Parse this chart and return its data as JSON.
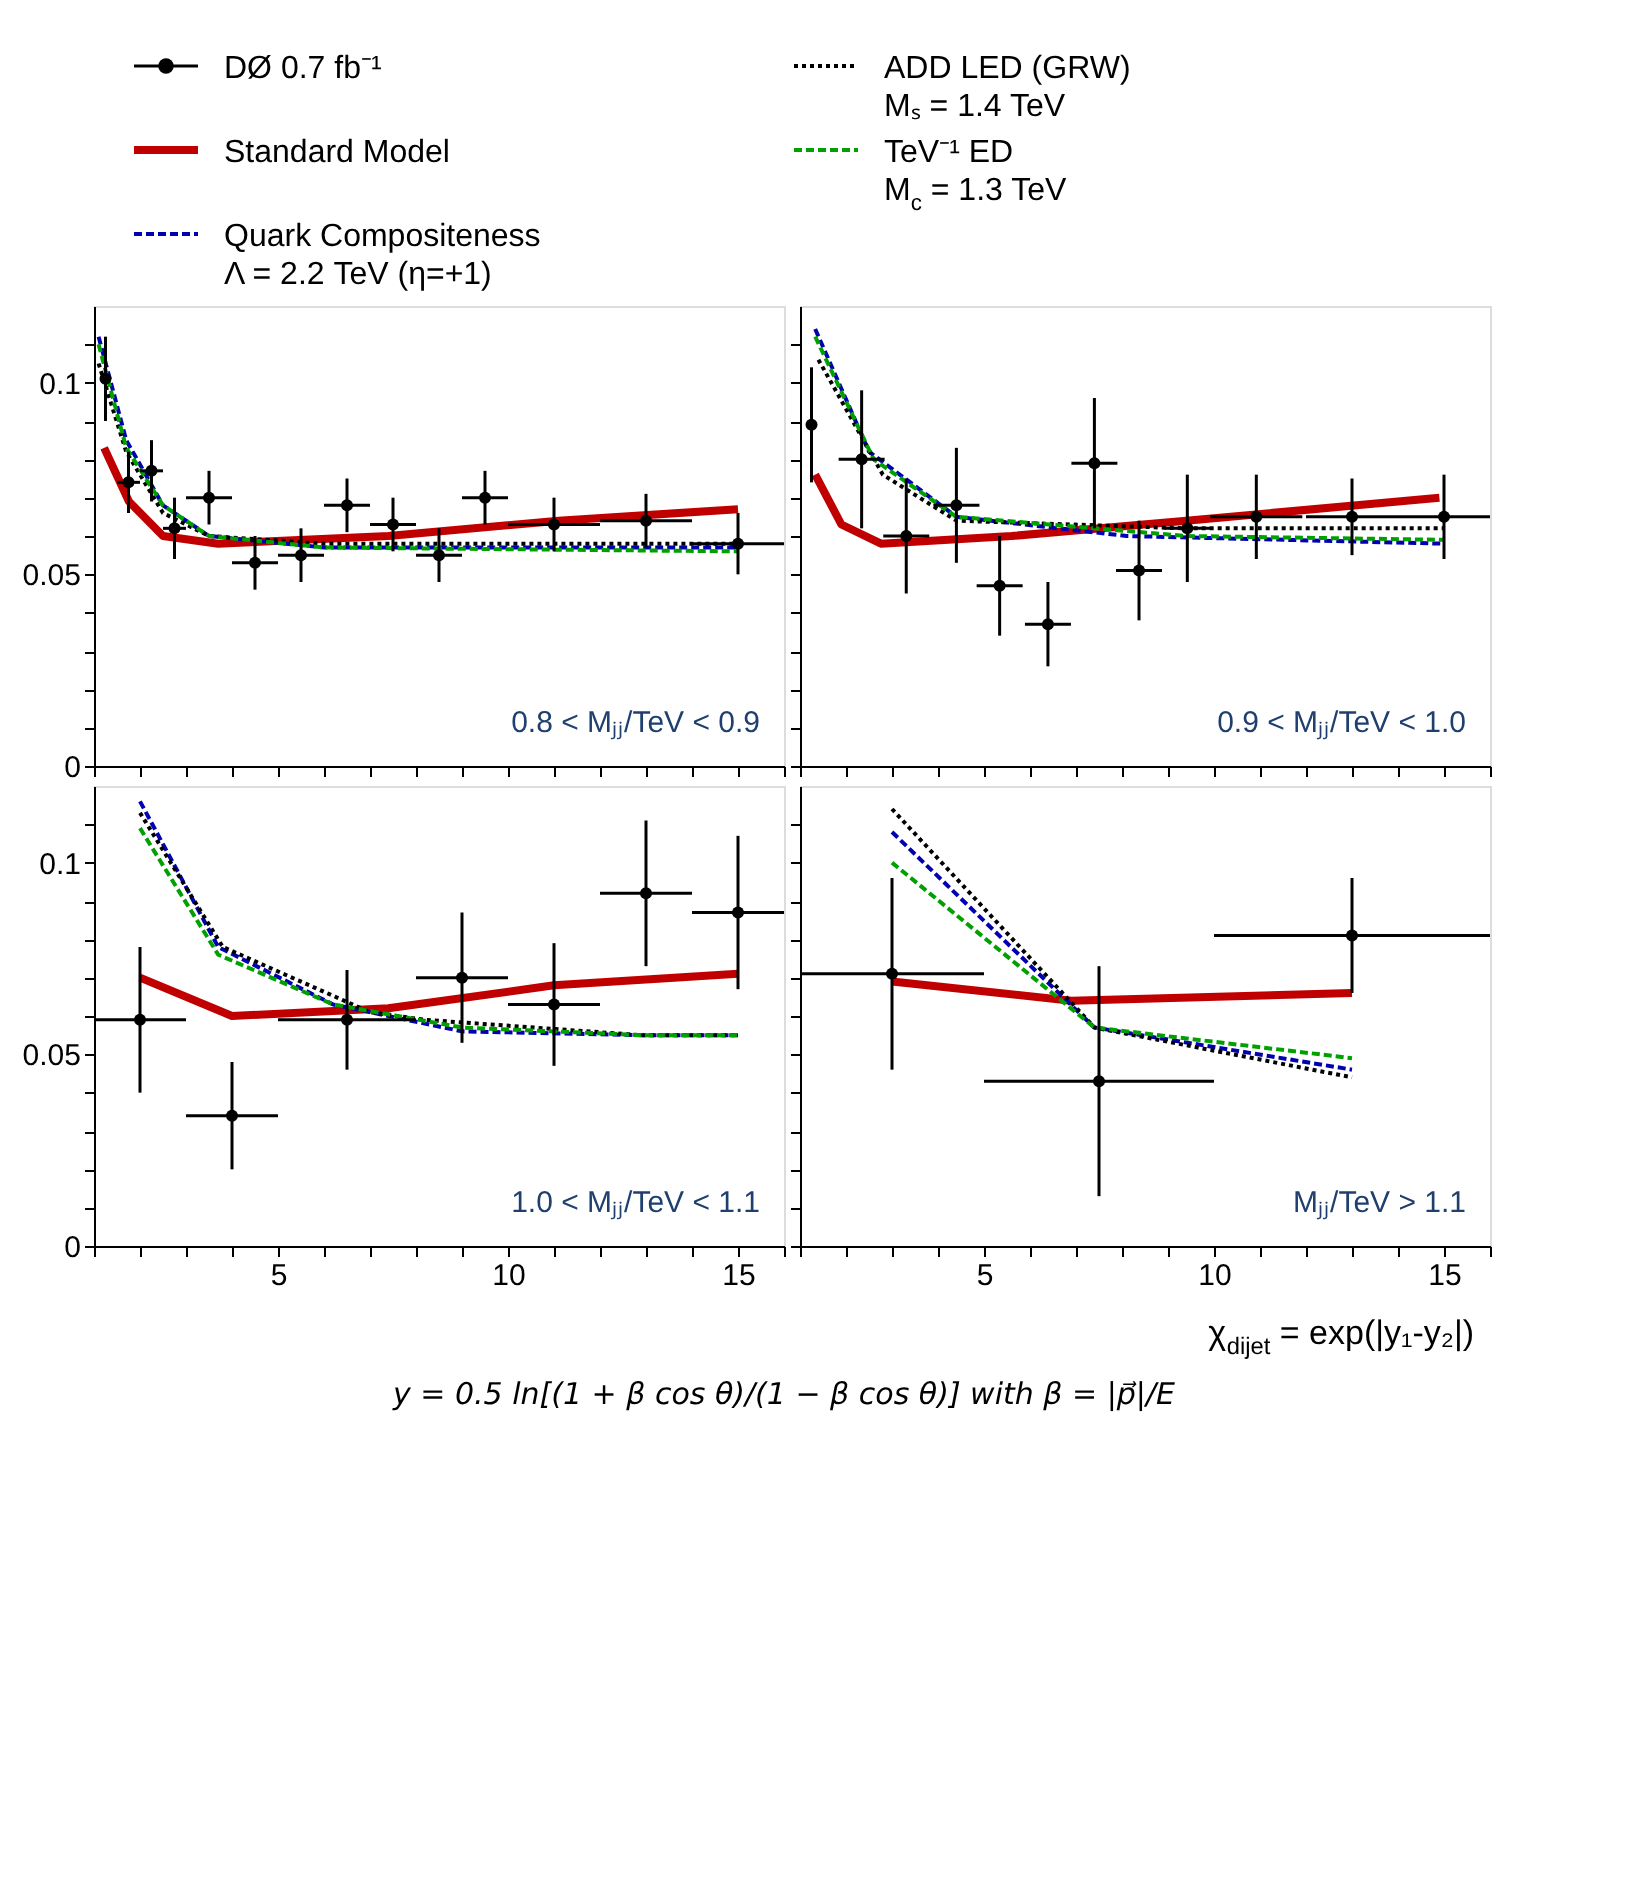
{
  "chart_data": [
    {
      "type": "line",
      "legend": "top",
      "tick_labels": "y",
      "xlim": [
        1,
        16
      ],
      "ylim": [
        0,
        0.12
      ],
      "xticks": [
        {
          "value": 1,
          "label": null
        },
        {
          "value": 2,
          "label": null
        },
        {
          "value": 3,
          "label": null
        },
        {
          "value": 4,
          "label": null
        },
        5,
        {
          "value": 6,
          "label": null
        },
        {
          "value": 7,
          "label": null
        },
        {
          "value": 8,
          "label": null
        },
        {
          "value": 9,
          "label": null
        },
        10,
        {
          "value": 11,
          "label": null
        },
        {
          "value": 12,
          "label": null
        },
        {
          "value": 13,
          "label": null
        },
        {
          "value": 14,
          "label": null
        },
        15,
        {
          "value": 16,
          "label": null
        }
      ],
      "yticks": [
        0,
        {
          "value": 0.01,
          "label": null
        },
        {
          "value": 0.02,
          "label": null
        },
        {
          "value": 0.03,
          "label": null
        },
        {
          "value": 0.04,
          "label": null
        },
        0.05,
        {
          "value": 0.06,
          "label": null
        },
        {
          "value": 0.07,
          "label": null
        },
        {
          "value": 0.08,
          "label": null
        },
        {
          "value": 0.09,
          "label": null
        },
        0.1,
        {
          "value": 0.11,
          "label": null
        }
      ],
      "annotations": [
        "0.8 < Mⱼⱼ/TeV < 0.9"
      ],
      "series": [
        {
          "name": "DØ 0.7 fb⁻¹",
          "type": "scatter",
          "marker": "circle",
          "color": "#000000",
          "x": [
            1.25,
            1.75,
            2.25,
            2.75,
            3.5,
            4.5,
            5.5,
            6.5,
            7.5,
            8.5,
            9.5,
            11,
            13,
            15
          ],
          "values": [
            0.101,
            0.074,
            0.077,
            0.062,
            0.07,
            0.053,
            0.055,
            0.068,
            0.063,
            0.055,
            0.07,
            0.063,
            0.064,
            0.058
          ],
          "errors": [
            0.011,
            0.008,
            0.008,
            0.008,
            0.007,
            0.007,
            0.007,
            0.007,
            0.007,
            0.007,
            0.007,
            0.007,
            0.007,
            0.008
          ],
          "xerrors": [
            null,
            0.25,
            0.25,
            0.25,
            0.5,
            0.5,
            0.5,
            0.5,
            0.5,
            0.5,
            0.5,
            1,
            1,
            1
          ]
        },
        {
          "name": "Standard Model",
          "line_style": "solid",
          "color": "#c00000",
          "x": [
            1.22,
            1.76,
            2.5,
            3.7,
            7.4,
            11.1,
            15
          ],
          "values": [
            0.083,
            0.069,
            0.06,
            0.058,
            0.06,
            0.064,
            0.067
          ]
        },
        {
          "name": "Quark Compositeness\nΛ = 2.2 TeV   (η=+1)",
          "line_style": "dashed",
          "color": "#0000b0",
          "x": [
            1.1,
            1.7,
            2.5,
            3.5,
            6,
            10,
            15
          ],
          "values": [
            0.112,
            0.085,
            0.068,
            0.06,
            0.057,
            0.057,
            0.057
          ]
        },
        {
          "name": "ADD LED  (GRW)\nMₛ = 1.4 TeV",
          "line_style": "dotted",
          "color": "#000000",
          "x": [
            1.1,
            1.7,
            2.5,
            3.5,
            6,
            15
          ],
          "values": [
            0.105,
            0.082,
            0.066,
            0.06,
            0.058,
            0.058
          ]
        },
        {
          "name": "TeV⁻¹ ED\nM$_{c}$ = 1.3 TeV",
          "line_style": "dashed",
          "color": "#00a000",
          "x": [
            1.1,
            1.7,
            2.5,
            3.5,
            6,
            15
          ],
          "values": [
            0.11,
            0.083,
            0.068,
            0.06,
            0.057,
            0.056
          ]
        }
      ]
    },
    {
      "type": "line",
      "tick_labels": false,
      "xlim": [
        1,
        16
      ],
      "ylim": [
        0,
        0.12
      ],
      "xticks": [
        {
          "value": 1,
          "label": null
        },
        {
          "value": 2,
          "label": null
        },
        {
          "value": 3,
          "label": null
        },
        {
          "value": 4,
          "label": null
        },
        5,
        {
          "value": 6,
          "label": null
        },
        {
          "value": 7,
          "label": null
        },
        {
          "value": 8,
          "label": null
        },
        {
          "value": 9,
          "label": null
        },
        10,
        {
          "value": 11,
          "label": null
        },
        {
          "value": 12,
          "label": null
        },
        {
          "value": 13,
          "label": null
        },
        {
          "value": 14,
          "label": null
        },
        15,
        {
          "value": 16,
          "label": null
        }
      ],
      "yticks": [
        0,
        {
          "value": 0.01,
          "label": null
        },
        {
          "value": 0.02,
          "label": null
        },
        {
          "value": 0.03,
          "label": null
        },
        {
          "value": 0.04,
          "label": null
        },
        0.05,
        {
          "value": 0.06,
          "label": null
        },
        {
          "value": 0.07,
          "label": null
        },
        {
          "value": 0.08,
          "label": null
        },
        {
          "value": 0.09,
          "label": null
        },
        0.1,
        {
          "value": 0.11,
          "label": null
        }
      ],
      "annotations": [
        "0.9 < Mⱼⱼ/TeV < 1.0"
      ],
      "series": [
        {
          "type": "scatter",
          "marker": "circle",
          "color": "#000000",
          "x": [
            1.25,
            2.34,
            3.31,
            4.4,
            5.34,
            6.39,
            7.4,
            8.37,
            9.42,
            10.92,
            13,
            15
          ],
          "values": [
            0.089,
            0.08,
            0.06,
            0.068,
            0.047,
            0.037,
            0.079,
            0.051,
            0.062,
            0.065,
            0.065,
            0.065
          ],
          "errors": [
            0.015,
            0.018,
            0.015,
            0.015,
            0.013,
            0.011,
            0.017,
            0.013,
            0.014,
            0.011,
            0.01,
            0.011
          ],
          "xerrors": [
            null,
            0.5,
            0.5,
            0.5,
            0.5,
            0.5,
            0.5,
            0.5,
            0.5,
            1,
            1,
            1
          ]
        },
        {
          "line_style": "solid",
          "color": "#c00000",
          "x": [
            1.33,
            1.9,
            2.76,
            5.6,
            9.4,
            13.1,
            14.9
          ],
          "values": [
            0.076,
            0.063,
            0.058,
            0.06,
            0.064,
            0.068,
            0.07
          ]
        },
        {
          "line_style": "dashed",
          "color": "#0000b0",
          "x": [
            1.33,
            2.5,
            4.4,
            8.1,
            15
          ],
          "values": [
            0.114,
            0.082,
            0.065,
            0.06,
            0.058
          ]
        },
        {
          "line_style": "dotted",
          "color": "#000000",
          "x": [
            1.4,
            2.8,
            4.4,
            9.4,
            15
          ],
          "values": [
            0.106,
            0.076,
            0.064,
            0.062,
            0.062
          ]
        },
        {
          "line_style": "dashed",
          "color": "#00a000",
          "x": [
            1.33,
            2.6,
            4.4,
            9.4,
            15
          ],
          "values": [
            0.112,
            0.08,
            0.065,
            0.06,
            0.059
          ]
        }
      ]
    },
    {
      "type": "line",
      "xlim": [
        1,
        16
      ],
      "ylim": [
        0,
        0.12
      ],
      "xticks": [
        {
          "value": 1,
          "label": null
        },
        {
          "value": 2,
          "label": null
        },
        {
          "value": 3,
          "label": null
        },
        {
          "value": 4,
          "label": null
        },
        5,
        {
          "value": 6,
          "label": null
        },
        {
          "value": 7,
          "label": null
        },
        {
          "value": 8,
          "label": null
        },
        {
          "value": 9,
          "label": null
        },
        10,
        {
          "value": 11,
          "label": null
        },
        {
          "value": 12,
          "label": null
        },
        {
          "value": 13,
          "label": null
        },
        {
          "value": 14,
          "label": null
        },
        15,
        {
          "value": 16,
          "label": null
        }
      ],
      "yticks": [
        0,
        {
          "value": 0.01,
          "label": null
        },
        {
          "value": 0.02,
          "label": null
        },
        {
          "value": 0.03,
          "label": null
        },
        {
          "value": 0.04,
          "label": null
        },
        0.05,
        {
          "value": 0.06,
          "label": null
        },
        {
          "value": 0.07,
          "label": null
        },
        {
          "value": 0.08,
          "label": null
        },
        {
          "value": 0.09,
          "label": null
        },
        0.1,
        {
          "value": 0.11,
          "label": null
        }
      ],
      "annotations": [
        "1.0 < Mⱼⱼ/TeV < 1.1"
      ],
      "series": [
        {
          "type": "scatter",
          "marker": "circle",
          "color": "#000000",
          "x": [
            2,
            4,
            6.5,
            9,
            11,
            13,
            15
          ],
          "values": [
            0.059,
            0.034,
            0.059,
            0.07,
            0.063,
            0.092,
            0.087
          ],
          "errors": [
            0.019,
            0.014,
            0.013,
            0.017,
            0.016,
            0.019,
            0.02
          ],
          "xerrors": [
            1,
            1,
            1.5,
            1,
            1,
            1,
            1
          ]
        },
        {
          "line_style": "solid",
          "color": "#c00000",
          "x": [
            2,
            4,
            7.4,
            11,
            15
          ],
          "values": [
            0.07,
            0.06,
            0.062,
            0.068,
            0.071
          ]
        },
        {
          "line_style": "dashed",
          "color": "#0000b0",
          "x": [
            2,
            3.7,
            6.2,
            9,
            12.9,
            15
          ],
          "values": [
            0.116,
            0.078,
            0.063,
            0.056,
            0.055,
            0.055
          ]
        },
        {
          "line_style": "dotted",
          "color": "#000000",
          "x": [
            2,
            3.8,
            7,
            8.2,
            12.9,
            15
          ],
          "values": [
            0.113,
            0.078,
            0.061,
            0.059,
            0.055,
            0.055
          ]
        },
        {
          "line_style": "dashed",
          "color": "#00a000",
          "x": [
            2,
            3.7,
            6.2,
            9,
            12.9,
            15
          ],
          "values": [
            0.109,
            0.076,
            0.063,
            0.057,
            0.055,
            0.055
          ]
        }
      ]
    },
    {
      "type": "line",
      "tick_labels": "x",
      "xlim": [
        1,
        16
      ],
      "ylim": [
        0,
        0.12
      ],
      "xlabel": "χ$_{dijet}$ = exp(|y₁-y₂|)",
      "xticks": [
        {
          "value": 1,
          "label": null
        },
        {
          "value": 2,
          "label": null
        },
        {
          "value": 3,
          "label": null
        },
        {
          "value": 4,
          "label": null
        },
        5,
        {
          "value": 6,
          "label": null
        },
        {
          "value": 7,
          "label": null
        },
        {
          "value": 8,
          "label": null
        },
        {
          "value": 9,
          "label": null
        },
        10,
        {
          "value": 11,
          "label": null
        },
        {
          "value": 12,
          "label": null
        },
        {
          "value": 13,
          "label": null
        },
        {
          "value": 14,
          "label": null
        },
        15,
        {
          "value": 16,
          "label": null
        }
      ],
      "yticks": [
        0,
        {
          "value": 0.01,
          "label": null
        },
        {
          "value": 0.02,
          "label": null
        },
        {
          "value": 0.03,
          "label": null
        },
        {
          "value": 0.04,
          "label": null
        },
        0.05,
        {
          "value": 0.06,
          "label": null
        },
        {
          "value": 0.07,
          "label": null
        },
        {
          "value": 0.08,
          "label": null
        },
        {
          "value": 0.09,
          "label": null
        },
        0.1,
        {
          "value": 0.11,
          "label": null
        }
      ],
      "annotations": [
        "Mⱼⱼ/TeV > 1.1",
        "y = 0.5 ln[(1 + β cos θ)/(1 − β cos θ)]  with  β = |p⃗|/E"
      ],
      "series": [
        {
          "type": "scatter",
          "marker": "circle",
          "color": "#000000",
          "x": [
            3,
            7.5,
            13
          ],
          "values": [
            0.071,
            0.043,
            0.081
          ],
          "errors": [
            0.025,
            0.03,
            0.015
          ],
          "xerrors": [
            2,
            2.5,
            3
          ]
        },
        {
          "line_style": "solid",
          "color": "#c00000",
          "x": [
            3,
            6.9,
            13
          ],
          "values": [
            0.069,
            0.064,
            0.066
          ]
        },
        {
          "line_style": "dashed",
          "color": "#0000b0",
          "x": [
            3,
            7.4,
            13
          ],
          "values": [
            0.108,
            0.057,
            0.046
          ]
        },
        {
          "line_style": "dotted",
          "color": "#000000",
          "x": [
            3,
            7.4,
            13
          ],
          "values": [
            0.114,
            0.057,
            0.044
          ]
        },
        {
          "line_style": "dashed",
          "color": "#00a000",
          "x": [
            3,
            7.4,
            13
          ],
          "values": [
            0.1,
            0.057,
            0.049
          ]
        }
      ]
    }
  ]
}
